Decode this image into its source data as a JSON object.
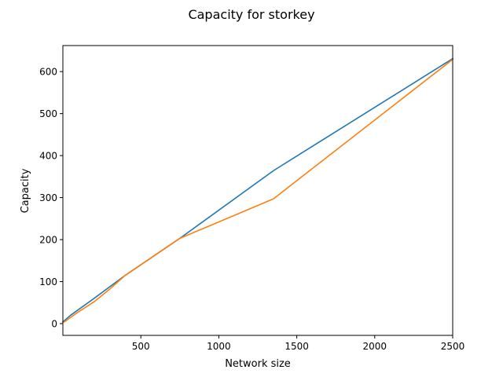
{
  "chart_data": {
    "type": "line",
    "title": "Capacity for storkey",
    "xlabel": "Network size",
    "ylabel": "Capacity",
    "xlim": [
      0,
      2500
    ],
    "ylim": [
      -28,
      662
    ],
    "xticks": [
      500,
      1000,
      1500,
      2000,
      2500
    ],
    "yticks": [
      0,
      100,
      200,
      300,
      400,
      500,
      600
    ],
    "grid": false,
    "legend": "none",
    "series": [
      {
        "color": "#1f77b4",
        "x": [
          0,
          50,
          200,
          400,
          750,
          1350,
          2500
        ],
        "y": [
          4,
          20,
          60,
          115,
          203,
          364,
          631
        ]
      },
      {
        "color": "#ff7f0e",
        "x": [
          0,
          10,
          50,
          100,
          200,
          300,
          400,
          750,
          1350,
          2500
        ],
        "y": [
          3,
          4,
          15,
          28,
          52,
          82,
          115,
          203,
          297,
          629
        ]
      }
    ]
  }
}
